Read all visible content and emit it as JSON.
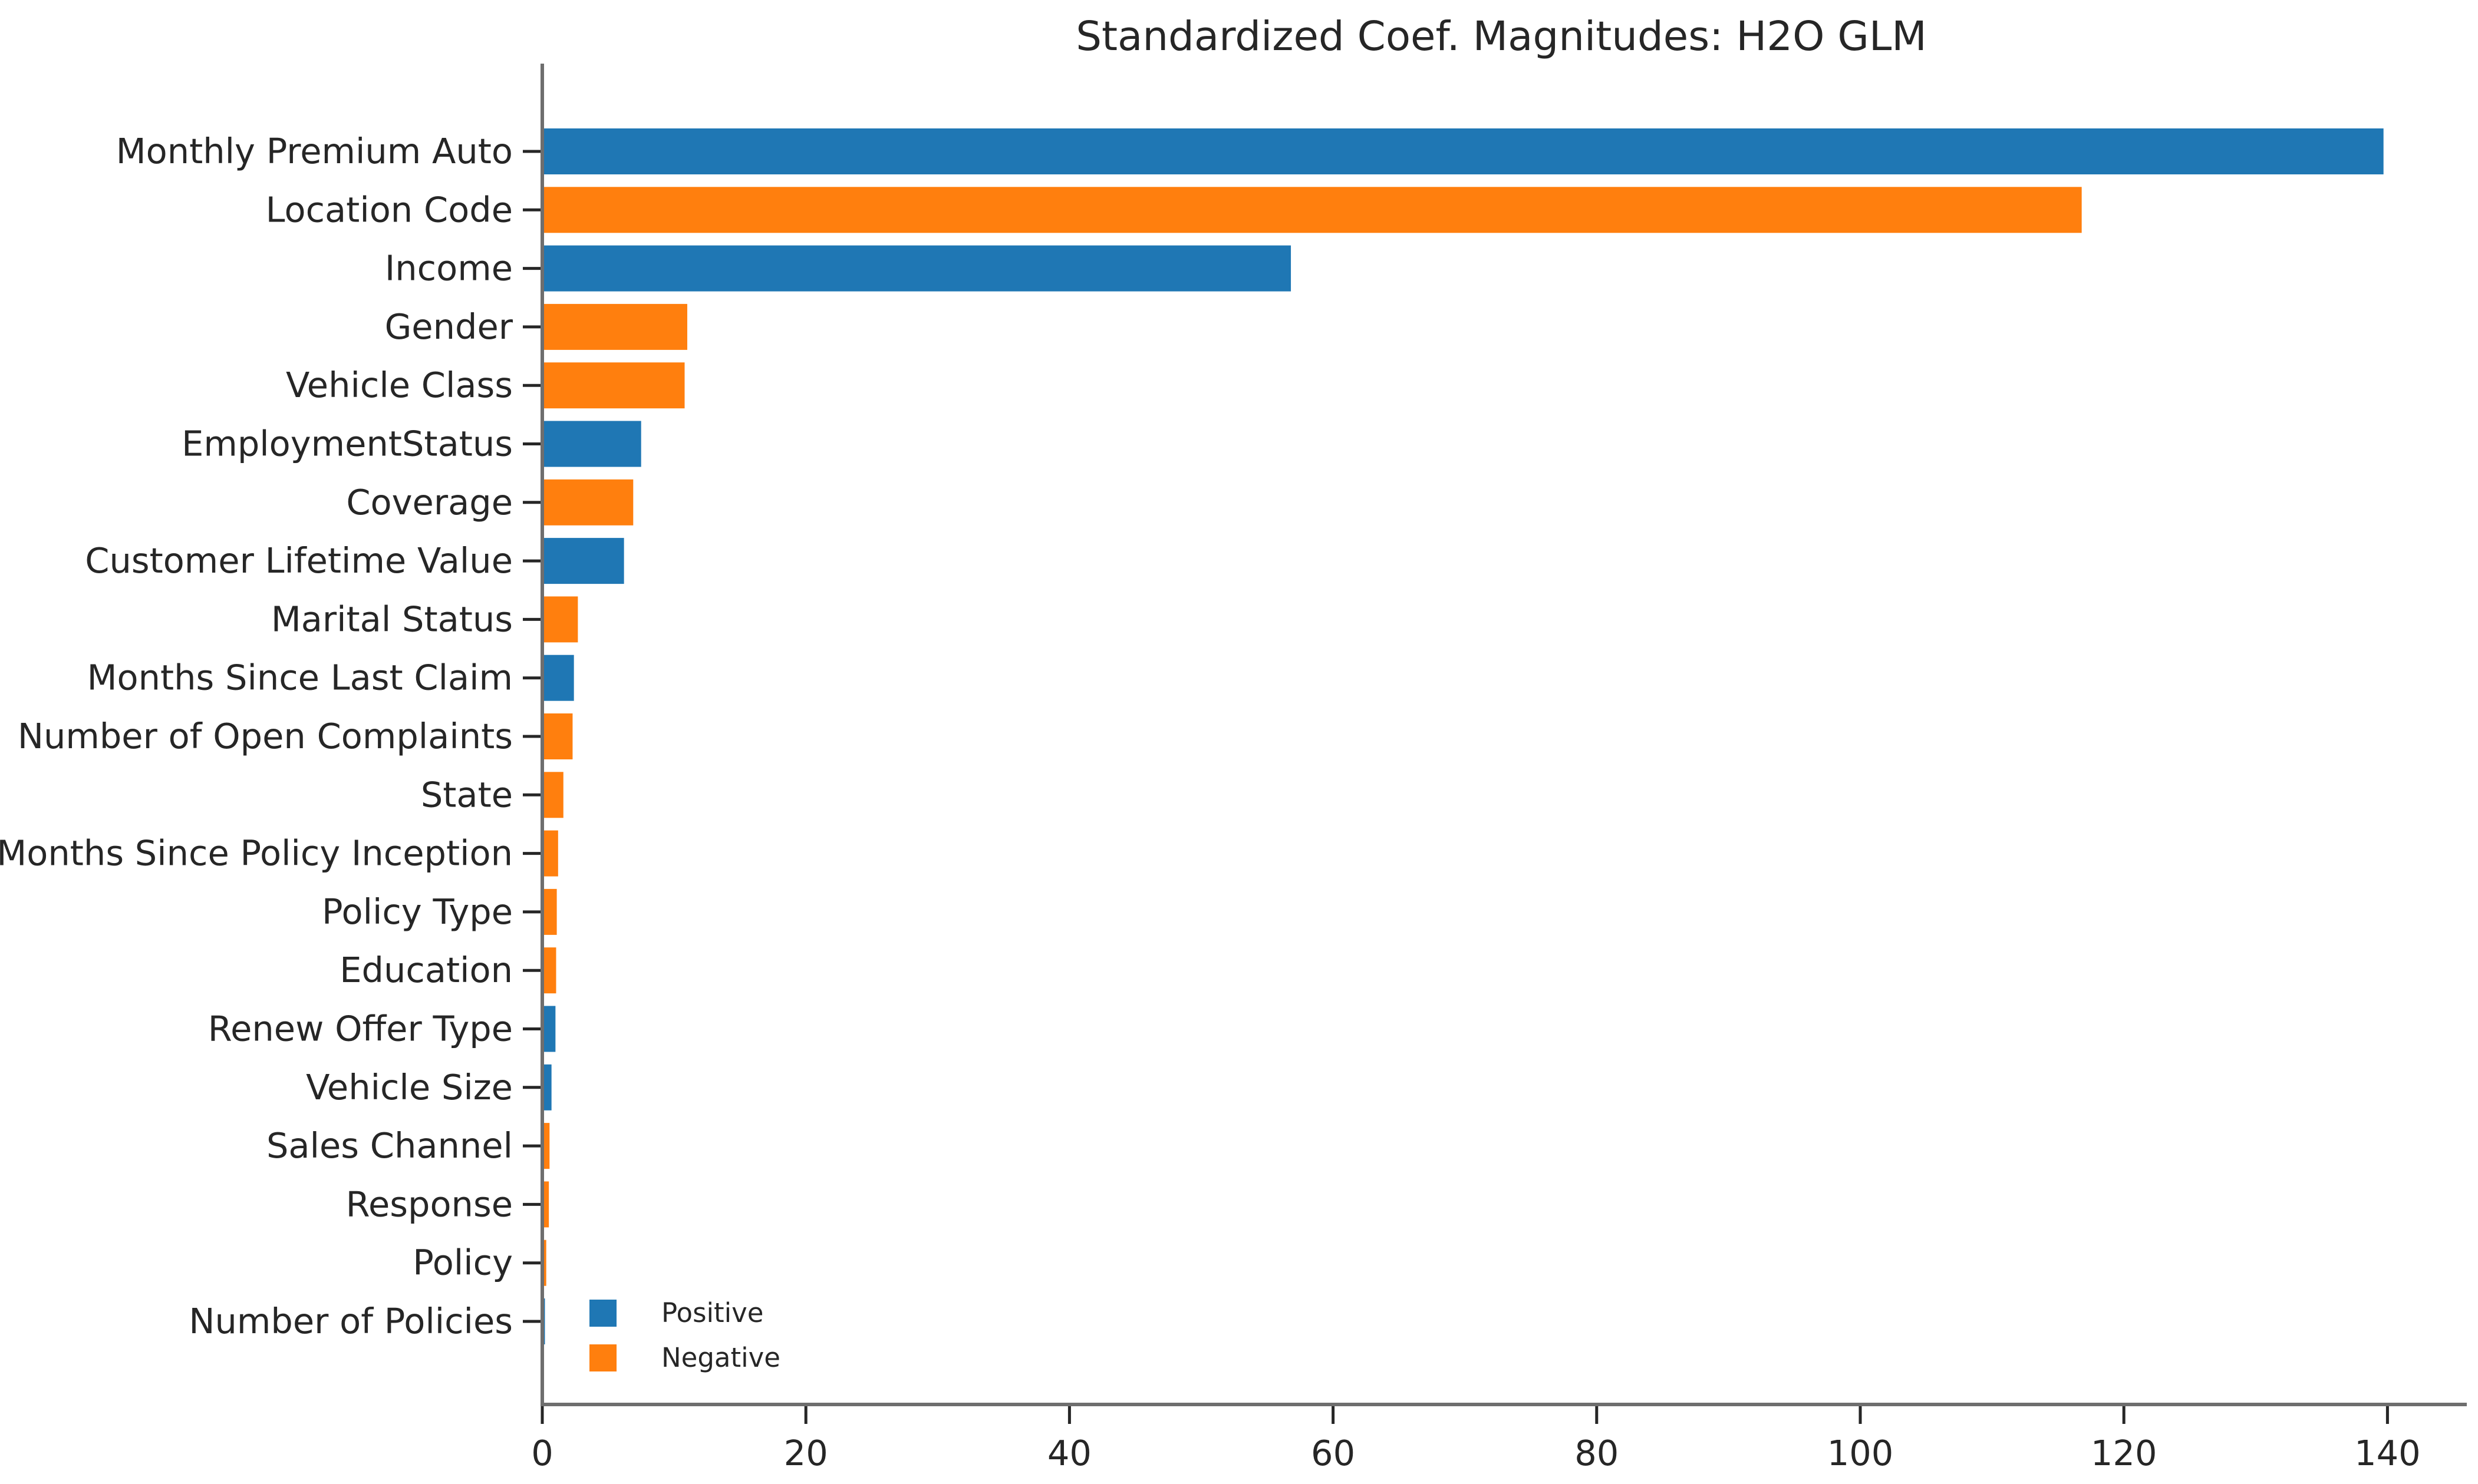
{
  "chart_data": {
    "type": "bar",
    "orientation": "horizontal",
    "title": "Standardized Coef. Magnitudes: H2O GLM",
    "xlabel": "",
    "ylabel": "",
    "xlim": [
      0,
      147
    ],
    "xticks": [
      0,
      20,
      40,
      60,
      80,
      100,
      120,
      140
    ],
    "categories": [
      "Monthly Premium Auto",
      "Location Code",
      "Income",
      "Gender",
      "Vehicle Class",
      "EmploymentStatus",
      "Coverage",
      "Customer Lifetime Value",
      "Marital Status",
      "Months Since Last Claim",
      "Number of Open Complaints",
      "State",
      "Months Since Policy Inception",
      "Policy Type",
      "Education",
      "Renew Offer Type",
      "Vehicle Size",
      "Sales Channel",
      "Response",
      "Policy",
      "Number of Policies"
    ],
    "values": [
      139.7,
      116.8,
      56.8,
      11.0,
      10.8,
      7.5,
      6.9,
      6.2,
      2.7,
      2.4,
      2.3,
      1.6,
      1.2,
      1.1,
      1.05,
      1.0,
      0.7,
      0.55,
      0.5,
      0.3,
      0.2
    ],
    "signs": [
      "Positive",
      "Negative",
      "Positive",
      "Negative",
      "Negative",
      "Positive",
      "Negative",
      "Positive",
      "Negative",
      "Positive",
      "Negative",
      "Negative",
      "Negative",
      "Negative",
      "Negative",
      "Positive",
      "Positive",
      "Negative",
      "Negative",
      "Negative",
      "Positive"
    ],
    "legend": {
      "placement": "lower-left",
      "entries": [
        {
          "name": "Positive",
          "color": "#1f77b4"
        },
        {
          "name": "Negative",
          "color": "#ff7f0e"
        }
      ]
    },
    "colors": {
      "Positive": "#1f77b4",
      "Negative": "#ff7f0e"
    },
    "grid": false
  }
}
